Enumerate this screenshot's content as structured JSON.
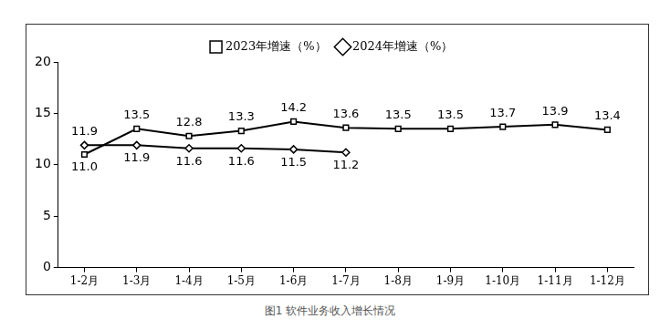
{
  "chart_data": {
    "type": "line",
    "title": "图1 软件业务收入增长情况",
    "categories": [
      "1-2月",
      "1-3月",
      "1-4月",
      "1-5月",
      "1-6月",
      "1-7月",
      "1-8月",
      "1-9月",
      "1-10月",
      "1-11月",
      "1-12月"
    ],
    "series": [
      {
        "name": "2023年增速（%）",
        "color": "#000000",
        "marker": "square",
        "line_style": "solid",
        "values": [
          11.0,
          13.5,
          12.8,
          13.3,
          14.2,
          13.6,
          13.5,
          13.5,
          13.7,
          13.9,
          13.4
        ],
        "value_labels": [
          "11.0",
          "13.5",
          "12.8",
          "13.3",
          "14.2",
          "13.6",
          "13.5",
          "13.5",
          "13.7",
          "13.9",
          "13.4"
        ]
      },
      {
        "name": "2024年增速（%）",
        "color": "#000000",
        "marker": "diamond",
        "line_style": "solid",
        "values": [
          11.9,
          11.9,
          11.6,
          11.6,
          11.5,
          11.2,
          null,
          null,
          null,
          null,
          null
        ]
      }
    ],
    "ylim": [
      0,
      20
    ],
    "yticks": [
      0,
      5,
      10,
      15,
      20
    ],
    "grid": false,
    "legend": "top",
    "data_labels": true
  }
}
